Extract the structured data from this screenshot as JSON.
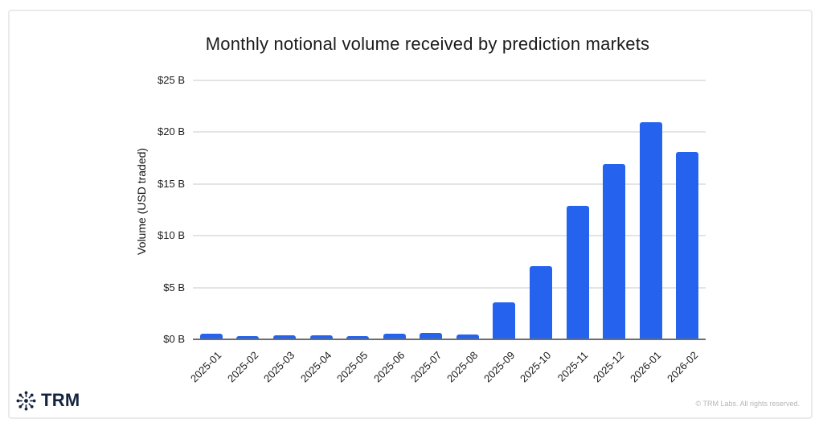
{
  "branding": {
    "logo_text": "TRM",
    "logo_icon": "network-asterisk-icon",
    "logo_color": "#14243f"
  },
  "footer": {
    "copyright": "© TRM Labs. All rights reserved."
  },
  "colors": {
    "bar": "#2563ee",
    "gridline": "#e4e4e4",
    "baseline": "#6e6e6e",
    "card_border": "#eaeaea",
    "title_text": "#1b1b1b",
    "copyright_text": "#b5b5b5"
  },
  "chart_data": {
    "type": "bar",
    "title": "Monthly notional volume received by prediction markets",
    "xlabel": "",
    "ylabel": "Volume (USD traded)",
    "unit": "USD billions",
    "categories": [
      "2025-01",
      "2025-02",
      "2025-03",
      "2025-04",
      "2025-05",
      "2025-06",
      "2025-07",
      "2025-08",
      "2025-09",
      "2025-10",
      "2025-11",
      "2025-12",
      "2026-01",
      "2026-02"
    ],
    "values": [
      0.55,
      0.3,
      0.4,
      0.4,
      0.35,
      0.55,
      0.65,
      0.5,
      3.6,
      7.1,
      12.9,
      16.9,
      21.0,
      18.1
    ],
    "ylim": [
      0,
      25
    ],
    "yticks": [
      0,
      5,
      10,
      15,
      20,
      25
    ],
    "ytick_labels": [
      "$0 B",
      "$5 B",
      "$10 B",
      "$15 B",
      "$20 B",
      "$25 B"
    ],
    "grid": true,
    "legend": "none"
  }
}
